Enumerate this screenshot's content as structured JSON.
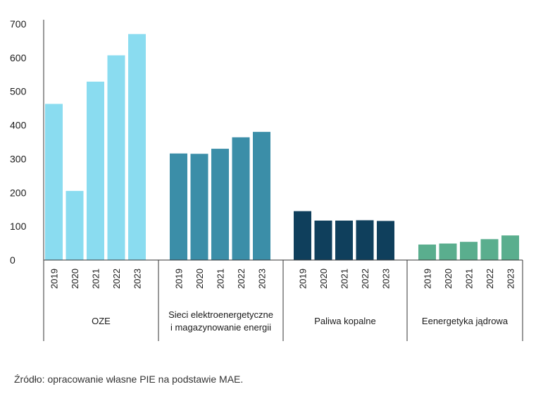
{
  "chart_data": {
    "type": "bar",
    "title": "",
    "xlabel": "",
    "ylabel": "",
    "ylim": [
      0,
      700
    ],
    "yticks": [
      0,
      100,
      200,
      300,
      400,
      500,
      600,
      700
    ],
    "grid": false,
    "legend": "none",
    "groups": [
      {
        "label_lines": [
          "OZE"
        ],
        "color": "#8adcf0",
        "categories": [
          "2019",
          "2020",
          "2021",
          "2022",
          "2023"
        ],
        "values": [
          463,
          205,
          529,
          607,
          670
        ]
      },
      {
        "label_lines": [
          "Sieci elektroenergetyczne",
          "i magazynowanie energii"
        ],
        "color": "#3b8ea8",
        "categories": [
          "2019",
          "2020",
          "2021",
          "2022",
          "2023"
        ],
        "values": [
          316,
          315,
          330,
          364,
          380
        ]
      },
      {
        "label_lines": [
          "Paliwa kopalne"
        ],
        "color": "#0f3f5c",
        "categories": [
          "2019",
          "2020",
          "2021",
          "2022",
          "2023"
        ],
        "values": [
          145,
          117,
          117,
          118,
          116
        ]
      },
      {
        "label_lines": [
          "Eenergetyka jądrowa"
        ],
        "color": "#5aae8e",
        "categories": [
          "2019",
          "2020",
          "2021",
          "2022",
          "2023"
        ],
        "values": [
          46,
          49,
          54,
          62,
          73
        ]
      }
    ]
  },
  "source_text": "Źródło: opracowanie własne PIE na podstawie MAE."
}
